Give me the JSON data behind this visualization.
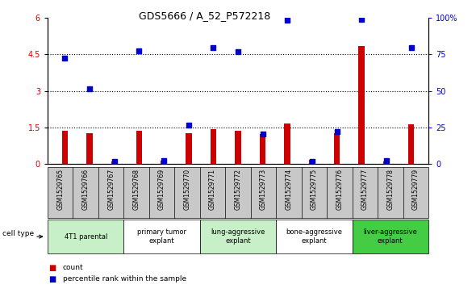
{
  "title": "GDS5666 / A_52_P572218",
  "samples": [
    "GSM1529765",
    "GSM1529766",
    "GSM1529767",
    "GSM1529768",
    "GSM1529769",
    "GSM1529770",
    "GSM1529771",
    "GSM1529772",
    "GSM1529773",
    "GSM1529774",
    "GSM1529775",
    "GSM1529776",
    "GSM1529777",
    "GSM1529778",
    "GSM1529779"
  ],
  "counts": [
    1.35,
    1.28,
    0.12,
    1.35,
    0.15,
    1.25,
    1.42,
    1.38,
    1.22,
    1.65,
    0.18,
    1.28,
    4.85,
    0.12,
    1.62
  ],
  "percentile_ranks_left": [
    4.35,
    3.08,
    0.11,
    4.65,
    0.13,
    1.58,
    4.78,
    4.62,
    1.22,
    5.88,
    0.11,
    1.32,
    5.92,
    0.13,
    4.78
  ],
  "cell_types": [
    {
      "label": "4T1 parental",
      "start": 0,
      "end": 3,
      "color": "#c8f0c8"
    },
    {
      "label": "primary tumor\nexplant",
      "start": 3,
      "end": 6,
      "color": "#ffffff"
    },
    {
      "label": "lung-aggressive\nexplant",
      "start": 6,
      "end": 9,
      "color": "#c8f0c8"
    },
    {
      "label": "bone-aggressive\nexplant",
      "start": 9,
      "end": 12,
      "color": "#ffffff"
    },
    {
      "label": "liver-aggressive\nexplant",
      "start": 12,
      "end": 15,
      "color": "#44cc44"
    }
  ],
  "ylim_left": [
    0,
    6
  ],
  "ylim_right": [
    0,
    100
  ],
  "yticks_left": [
    0,
    1.5,
    3.0,
    4.5,
    6.0
  ],
  "ytick_labels_left": [
    "0",
    "1.5",
    "3",
    "4.5",
    "6"
  ],
  "yticks_right": [
    0,
    25,
    50,
    75,
    100
  ],
  "ytick_labels_right": [
    "0",
    "25",
    "50",
    "75",
    "100%"
  ],
  "bar_color": "#cc0000",
  "scatter_color": "#0000cc",
  "background_color": "#ffffff",
  "tick_label_color_left": "#cc0000",
  "tick_label_color_right": "#0000cc",
  "bar_width": 0.25,
  "dotted_lines": [
    1.5,
    3.0,
    4.5
  ],
  "sample_area_color": "#c8c8c8",
  "cell_type_label": "cell type"
}
